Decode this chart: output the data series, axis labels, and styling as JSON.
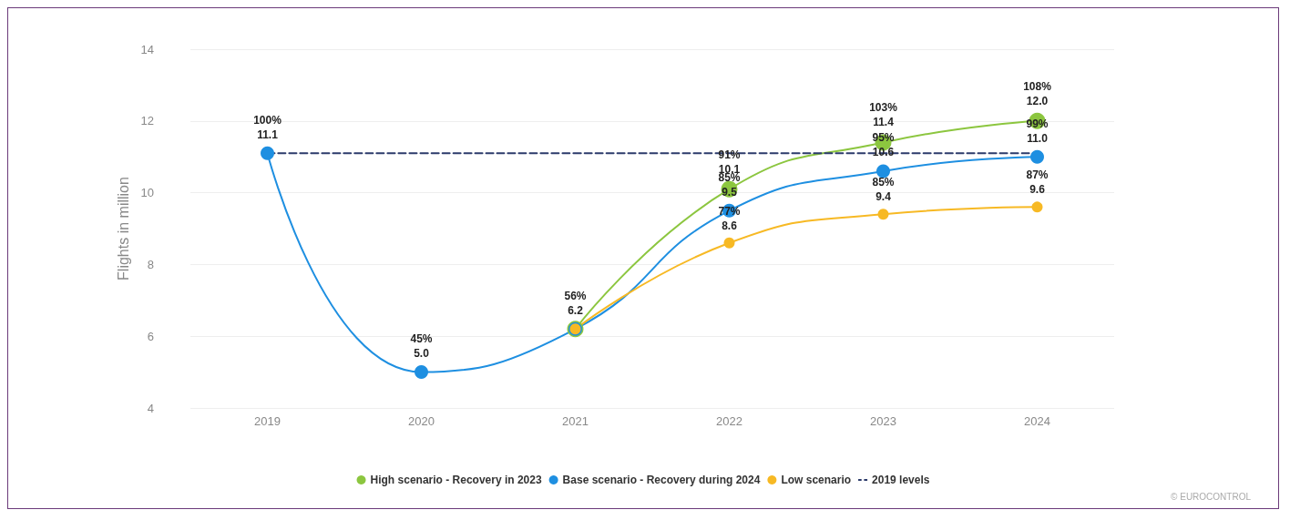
{
  "chart_data": {
    "type": "line",
    "ylabel": "Flights in million",
    "categories": [
      "2019",
      "2020",
      "2021",
      "2022",
      "2023",
      "2024"
    ],
    "ylim": [
      4,
      14
    ],
    "yticks": [
      4,
      6,
      8,
      10,
      12,
      14
    ],
    "grid": "y",
    "legend": "bottom",
    "marker": "circle",
    "line_style": "solid",
    "series": [
      {
        "name": "High scenario - Recovery in 2023",
        "color": "#8cc63f",
        "values": [
          null,
          null,
          6.2,
          10.1,
          11.4,
          12.0
        ],
        "value_labels": [
          null,
          null,
          null,
          "91%\n10.1",
          "103%\n11.4",
          "108%\n12.0"
        ]
      },
      {
        "name": "Base scenario - Recovery during 2024",
        "color": "#1e8fe1",
        "values": [
          11.1,
          5.0,
          6.2,
          9.5,
          10.6,
          11.0
        ],
        "value_labels": [
          "100%\n11.1",
          "45%\n5.0",
          "56%\n6.2",
          "85%\n9.5",
          "95%\n10.6",
          "99%\n11.0"
        ]
      },
      {
        "name": "Low scenario",
        "color": "#f7b924",
        "values": [
          null,
          null,
          6.2,
          8.6,
          9.4,
          9.6
        ],
        "value_labels": [
          null,
          null,
          null,
          "77%\n8.6",
          "85%\n9.4",
          "87%\n9.6"
        ]
      },
      {
        "name": "2019 levels",
        "color": "#2c3b6b",
        "values": [
          11.1,
          11.1,
          11.1,
          11.1,
          11.1,
          11.1
        ],
        "line_style": "dashed",
        "marker": "none"
      }
    ],
    "annotations": [
      "© EUROCONTROL"
    ]
  }
}
